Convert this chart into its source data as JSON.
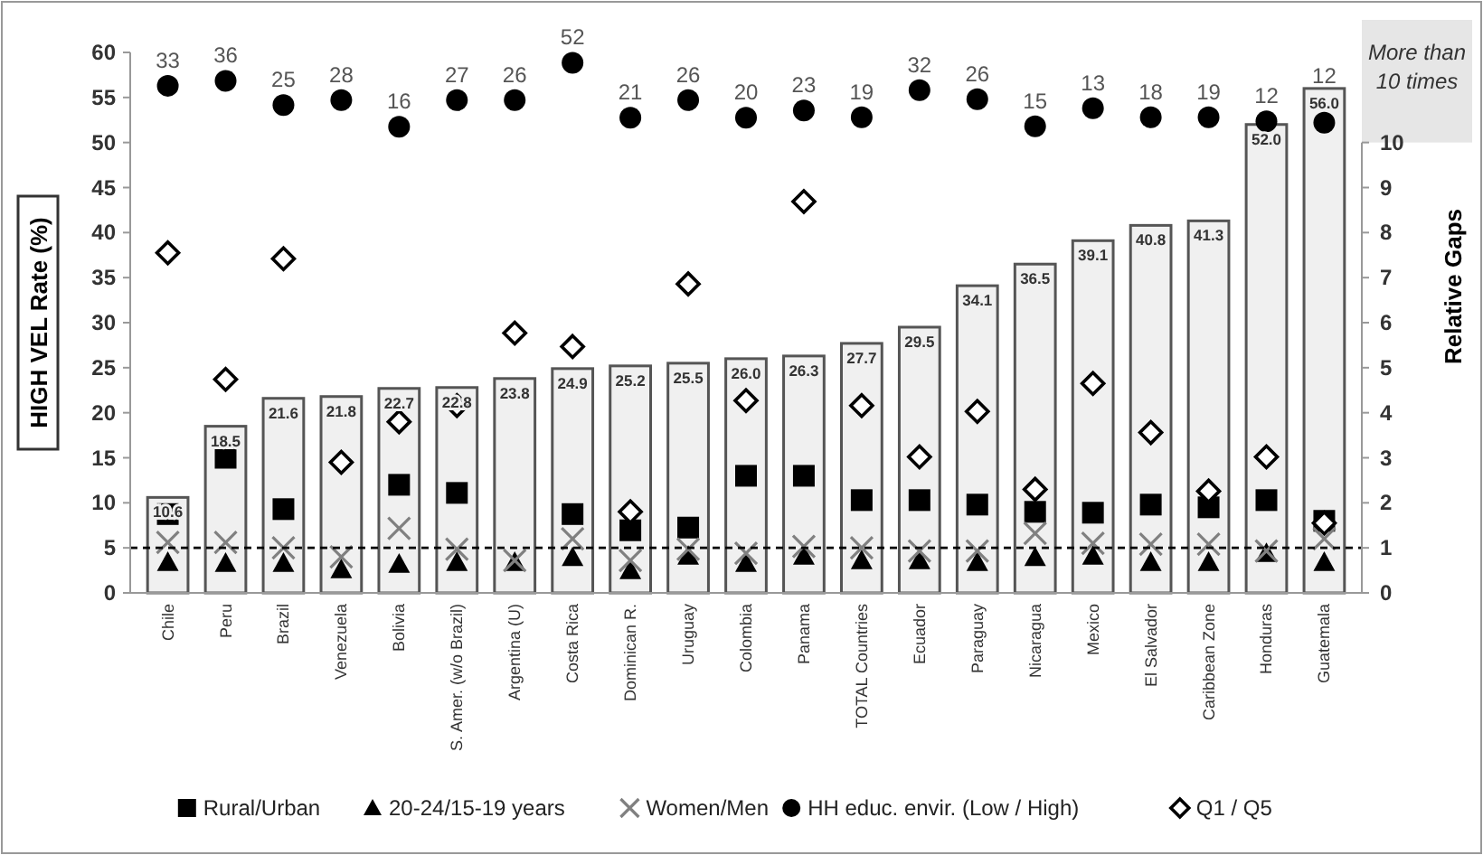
{
  "chart_data": {
    "type": "bar",
    "ylabel": "HIGH VEL Rate (%)",
    "y2label": "Relative Gaps",
    "categories": [
      "Chile",
      "Peru",
      "Brazil",
      "Venezuela",
      "Bolivia",
      "S. Amer. (w/o Brazil)",
      "Argentina (U)",
      "Costa Rica",
      "Dominican R.",
      "Uruguay",
      "Colombia",
      "Panama",
      "TOTAL Countries",
      "Ecuador",
      "Paraguay",
      "Nicaragua",
      "Mexico",
      "El Salvador",
      "Caribbean Zone",
      "Honduras",
      "Guatemala"
    ],
    "series": [
      {
        "color": "#f0f0f0",
        "values": [
          10.6,
          18.5,
          21.6,
          21.8,
          22.7,
          22.8,
          23.8,
          24.9,
          25.2,
          25.5,
          26.0,
          26.3,
          27.7,
          29.5,
          34.1,
          36.5,
          39.1,
          40.8,
          41.3,
          52.0,
          56.0
        ],
        "value_labels": [
          "10.6",
          "18.5",
          "21.6",
          "21.8",
          "22.7",
          "22.8",
          "23.8",
          "24.9",
          "25.2",
          "25.5",
          "26.0",
          "26.3",
          "27.7",
          "29.5",
          "34.1",
          "36.5",
          "39.1",
          "40.8",
          "41.3",
          "52.0",
          "56.0"
        ]
      },
      {
        "type": "scatter",
        "axis": "y2",
        "name": "Rural/Urban",
        "color": "#000000",
        "marker": "square",
        "values": [
          1.75,
          3.0,
          1.86,
          null,
          2.4,
          2.22,
          null,
          1.75,
          1.39,
          1.45,
          2.6,
          2.6,
          2.06,
          2.06,
          1.96,
          1.8,
          1.78,
          1.96,
          1.9,
          2.06,
          1.6
        ]
      },
      {
        "type": "scatter",
        "axis": "y2",
        "name": "20-24/15-19 years",
        "color": "#000000",
        "marker": "triangle",
        "values": [
          0.68,
          0.66,
          0.66,
          0.52,
          0.64,
          0.68,
          0.68,
          0.79,
          0.5,
          0.82,
          0.66,
          0.82,
          0.72,
          0.72,
          0.68,
          0.79,
          0.82,
          0.68,
          0.68,
          0.88,
          0.68
        ]
      },
      {
        "type": "scatter",
        "axis": "y2",
        "name": "Women/Men",
        "color": "#808080",
        "marker": "cross",
        "values": [
          1.12,
          1.12,
          1.0,
          0.8,
          1.43,
          0.97,
          0.72,
          1.2,
          0.72,
          0.97,
          0.88,
          1.03,
          1.0,
          0.93,
          0.93,
          1.32,
          1.1,
          1.08,
          1.08,
          0.93,
          1.2
        ]
      },
      {
        "type": "scatter",
        "axis": "y2",
        "name": "HH educ. envir. (Low / High)",
        "color": "#000000",
        "marker": "circle",
        "values": [
          11.26,
          11.37,
          10.83,
          10.94,
          10.35,
          10.94,
          10.94,
          11.77,
          10.55,
          10.94,
          10.55,
          10.71,
          10.56,
          11.16,
          10.96,
          10.36,
          10.76,
          10.56,
          10.56,
          10.47,
          10.44
        ]
      },
      {
        "type": "scatter",
        "axis": "y2",
        "name": "Q1 / Q5",
        "color": "#000000",
        "marker": "diamond",
        "values": [
          7.55,
          4.74,
          7.42,
          2.9,
          3.8,
          4.16,
          5.77,
          5.47,
          1.8,
          6.86,
          4.27,
          8.69,
          4.16,
          3.02,
          4.03,
          2.3,
          4.65,
          3.56,
          2.26,
          3.02,
          1.55
        ]
      }
    ],
    "ylim": [
      0,
      60
    ],
    "yticks": [
      0,
      5,
      10,
      15,
      20,
      25,
      30,
      35,
      40,
      45,
      50,
      55,
      60
    ],
    "y2lim": [
      0,
      12
    ],
    "y2ticks": [
      0,
      1,
      2,
      3,
      4,
      5,
      6,
      7,
      8,
      9,
      10
    ],
    "ref_lines": [
      {
        "axis": "y2",
        "value": 1,
        "line_style": "dashed",
        "color": "#000000"
      }
    ],
    "annotations": [
      "More than 10 times",
      "33",
      "36",
      "25",
      "28",
      "16",
      "27",
      "26",
      "52",
      "21",
      "26",
      "20",
      "23",
      "19",
      "32",
      "26",
      "15",
      "13",
      "18",
      "19",
      "12",
      "12"
    ],
    "legend": "bottom",
    "grid": false
  }
}
